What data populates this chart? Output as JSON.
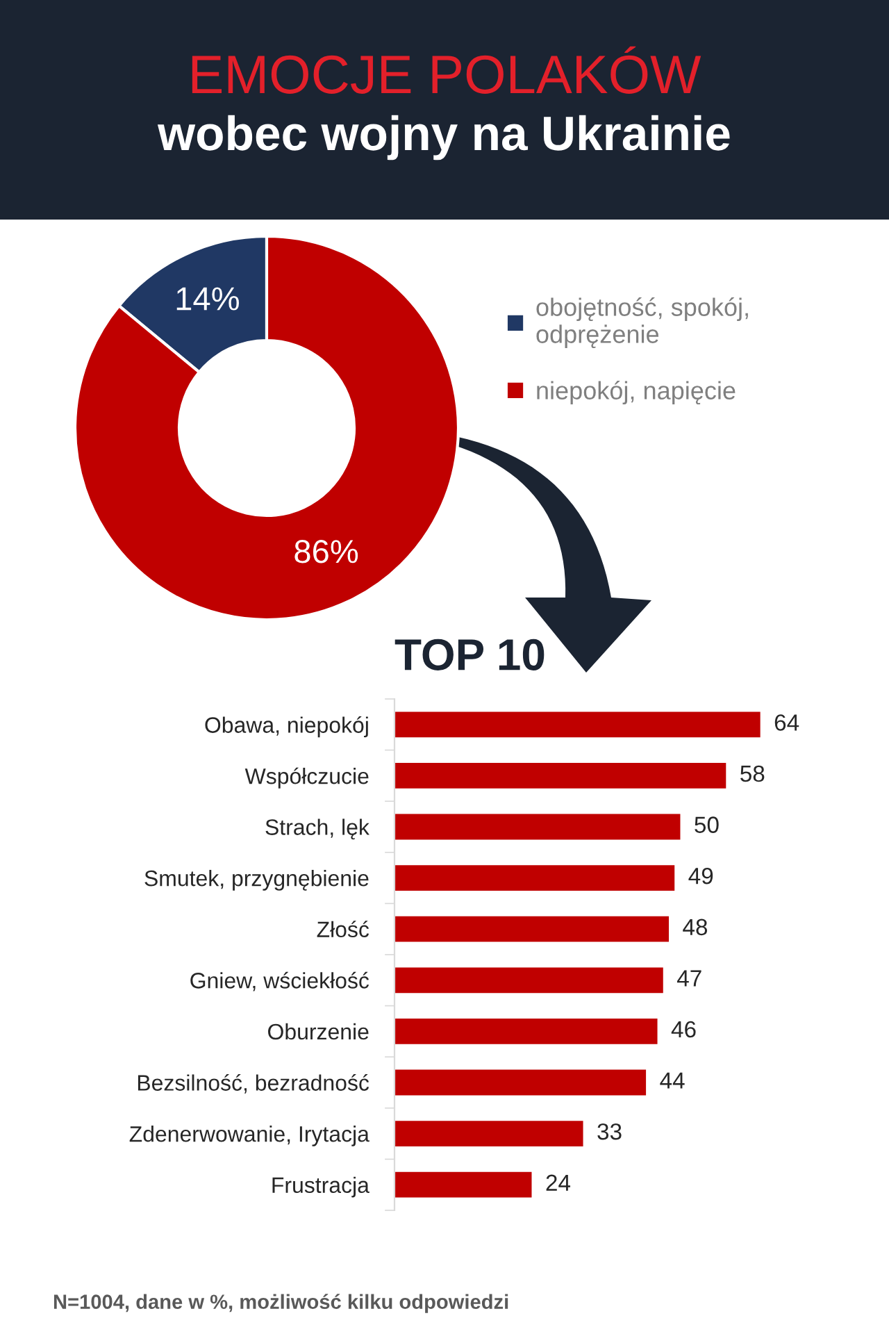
{
  "chart_data": [
    {
      "type": "donut",
      "title": "EMOCJE POLAKÓW",
      "subtitle": "wobec wojny na Ukrainie",
      "categories": [
        "obojętność, spokój, odprężenie",
        "niepokój, napięcie"
      ],
      "values": [
        14,
        86
      ],
      "colors": [
        "#203864",
        "#c00000"
      ],
      "value_labels": [
        "14%",
        "86%"
      ],
      "legend": "right"
    },
    {
      "type": "bar",
      "orientation": "horizontal",
      "title": "TOP 10",
      "categories": [
        "Obawa, niepokój",
        "Współczucie",
        "Strach, lęk",
        "Smutek, przygnębienie",
        "Złość",
        "Gniew, wściekłość",
        "Oburzenie",
        "Bezsilność, bezradność",
        "Zdenerwowanie, Irytacja",
        "Frustracja"
      ],
      "values": [
        64,
        58,
        50,
        49,
        48,
        47,
        46,
        44,
        33,
        24
      ],
      "color": "#c00000",
      "data_labels": true,
      "tick_labels": "y",
      "annotations": [
        "N=1004, dane w %, możliwość kilku odpowiedzi"
      ]
    }
  ]
}
